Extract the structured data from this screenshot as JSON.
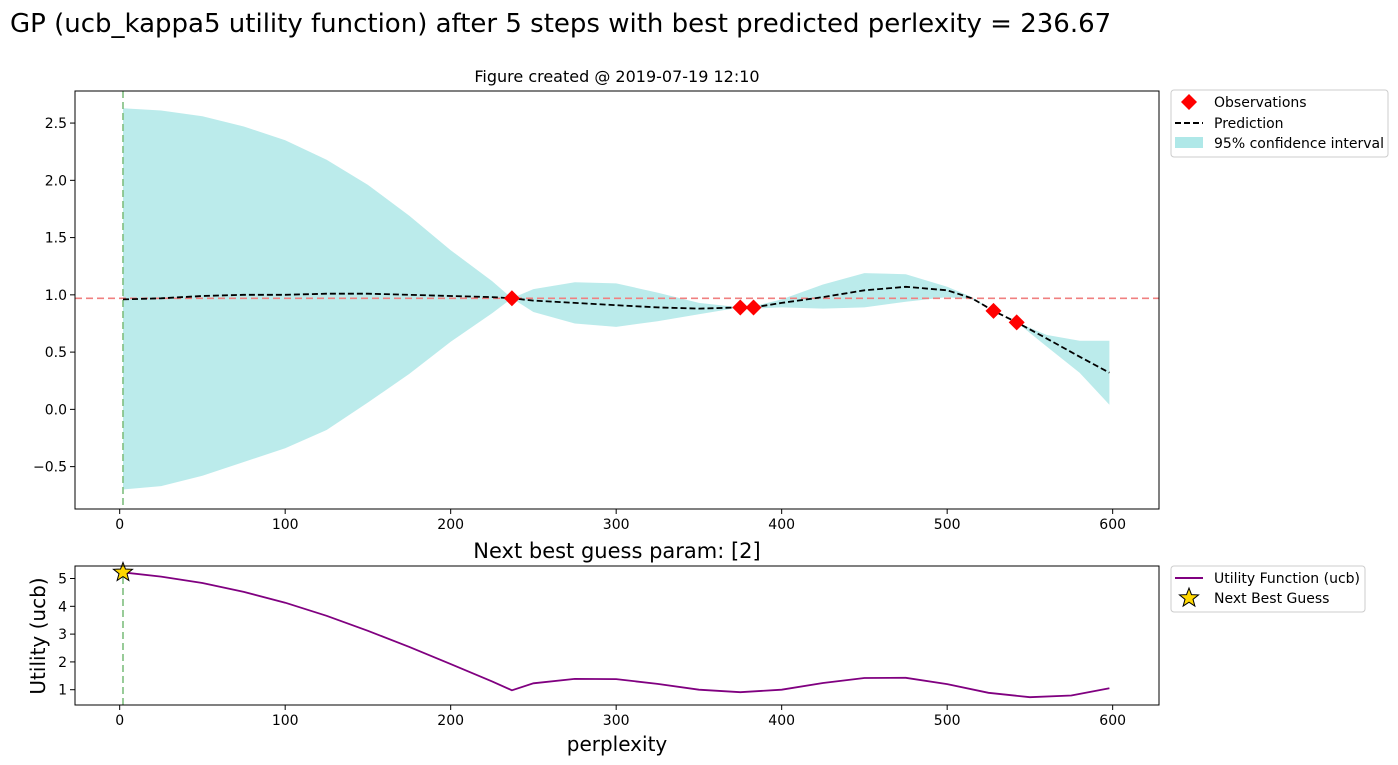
{
  "suptitle": "GP (ucb_kappa5 utility function) after 5 steps with best predicted perlexity = 236.67",
  "colors": {
    "confidence": "#afe8e8",
    "prediction": "#000000",
    "observation": "#ff0000",
    "best_hline": "#f08080",
    "next_vline": "#7fbf7f",
    "utility": "#800080",
    "star": "#ffd700"
  },
  "chart_data": [
    {
      "type": "line",
      "title": "Figure created @ 2019-07-19 12:10",
      "xlabel": "",
      "ylabel": "",
      "xlim": [
        -27,
        628
      ],
      "ylim": [
        -0.87,
        2.78
      ],
      "xticks": [
        0,
        100,
        200,
        300,
        400,
        500,
        600
      ],
      "yticks": [
        -0.5,
        0.0,
        0.5,
        1.0,
        1.5,
        2.0,
        2.5
      ],
      "xtick_labels": [
        "0",
        "100",
        "200",
        "300",
        "400",
        "500",
        "600"
      ],
      "ytick_labels": [
        "−0.5",
        "0.0",
        "0.5",
        "1.0",
        "1.5",
        "2.0",
        "2.5"
      ],
      "legend_position": "outside-top-right",
      "legend": [
        "Observations",
        "Prediction",
        "95% confidence interval"
      ],
      "best_value_line": 0.97,
      "next_guess_line": 2,
      "observations": {
        "name": "Observations",
        "x": [
          237,
          375,
          383,
          528,
          542
        ],
        "y": [
          0.97,
          0.89,
          0.89,
          0.86,
          0.76
        ]
      },
      "prediction": {
        "name": "Prediction",
        "x": [
          2,
          25,
          50,
          75,
          100,
          125,
          150,
          175,
          200,
          225,
          237,
          250,
          275,
          300,
          325,
          350,
          375,
          383,
          400,
          425,
          450,
          475,
          500,
          515,
          528,
          542,
          560,
          580,
          598
        ],
        "y": [
          0.96,
          0.97,
          0.99,
          1.0,
          1.0,
          1.01,
          1.01,
          1.0,
          0.99,
          0.98,
          0.97,
          0.95,
          0.93,
          0.91,
          0.89,
          0.88,
          0.89,
          0.89,
          0.93,
          0.98,
          1.04,
          1.07,
          1.04,
          0.97,
          0.86,
          0.76,
          0.62,
          0.46,
          0.32
        ]
      },
      "confidence_interval": {
        "name": "95% confidence interval",
        "x": [
          2,
          25,
          50,
          75,
          100,
          125,
          150,
          175,
          200,
          225,
          237,
          250,
          275,
          300,
          325,
          350,
          375,
          383,
          400,
          425,
          450,
          475,
          500,
          515,
          528,
          542,
          560,
          580,
          598
        ],
        "upper": [
          2.63,
          2.61,
          2.56,
          2.47,
          2.35,
          2.18,
          1.96,
          1.69,
          1.39,
          1.12,
          0.97,
          1.05,
          1.11,
          1.1,
          1.02,
          0.93,
          0.89,
          0.9,
          0.96,
          1.09,
          1.19,
          1.18,
          1.07,
          0.98,
          0.86,
          0.76,
          0.65,
          0.6,
          0.6
        ],
        "lower": [
          -0.7,
          -0.67,
          -0.58,
          -0.46,
          -0.34,
          -0.18,
          0.06,
          0.31,
          0.59,
          0.84,
          0.97,
          0.85,
          0.75,
          0.72,
          0.77,
          0.83,
          0.89,
          0.88,
          0.89,
          0.88,
          0.89,
          0.94,
          0.98,
          0.96,
          0.86,
          0.76,
          0.55,
          0.32,
          0.04
        ]
      }
    },
    {
      "type": "line",
      "title": "Next best guess param: [2]",
      "xlabel": "perplexity",
      "ylabel": "Utility (ucb)",
      "xlim": [
        -27,
        628
      ],
      "ylim": [
        0.45,
        5.45
      ],
      "xticks": [
        0,
        100,
        200,
        300,
        400,
        500,
        600
      ],
      "yticks": [
        1,
        2,
        3,
        4,
        5
      ],
      "xtick_labels": [
        "0",
        "100",
        "200",
        "300",
        "400",
        "500",
        "600"
      ],
      "ytick_labels": [
        "1",
        "2",
        "3",
        "4",
        "5"
      ],
      "legend_position": "outside-top-right",
      "legend": [
        "Utility Function (ucb)",
        "Next Best Guess"
      ],
      "next_guess_line": 2,
      "utility": {
        "name": "Utility Function (ucb)",
        "x": [
          2,
          25,
          50,
          75,
          100,
          125,
          150,
          175,
          200,
          225,
          237,
          250,
          275,
          300,
          325,
          350,
          375,
          400,
          425,
          450,
          475,
          500,
          525,
          550,
          575,
          598
        ],
        "y": [
          5.22,
          5.07,
          4.84,
          4.52,
          4.13,
          3.66,
          3.12,
          2.54,
          1.92,
          1.3,
          0.98,
          1.23,
          1.39,
          1.38,
          1.21,
          1.0,
          0.91,
          1.0,
          1.24,
          1.42,
          1.43,
          1.2,
          0.89,
          0.73,
          0.79,
          1.05
        ]
      },
      "next_best_guess": {
        "name": "Next Best Guess",
        "x": 2,
        "y": 5.22
      }
    }
  ]
}
